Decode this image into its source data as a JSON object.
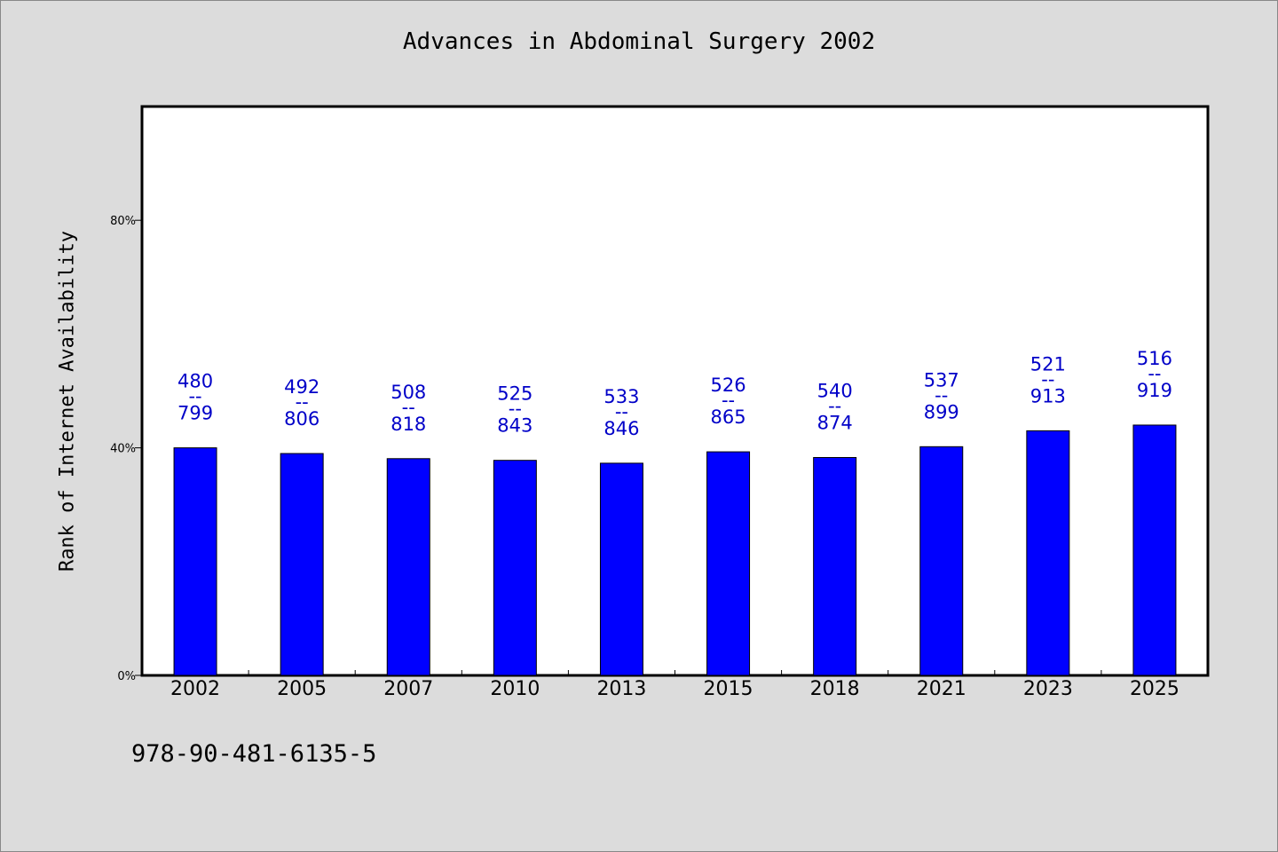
{
  "chart_data": {
    "type": "bar",
    "title": "Advances in Abdominal Surgery 2002",
    "ylabel": "Rank of Internet Availability",
    "xlabel": "",
    "categories": [
      "2002",
      "2005",
      "2007",
      "2010",
      "2013",
      "2015",
      "2018",
      "2021",
      "2023",
      "2025"
    ],
    "values": [
      40.0,
      39.0,
      38.1,
      37.8,
      37.3,
      39.3,
      38.3,
      40.2,
      43.0,
      44.0
    ],
    "labels_top": [
      "480",
      "492",
      "508",
      "525",
      "533",
      "526",
      "540",
      "537",
      "521",
      "516"
    ],
    "labels_bottom": [
      "799",
      "806",
      "818",
      "843",
      "846",
      "865",
      "874",
      "899",
      "913",
      "919"
    ],
    "label_separator": "--",
    "ylim": [
      0,
      100
    ],
    "yticks": [
      0,
      40,
      80
    ],
    "ytick_labels": [
      "0%",
      "40%",
      "80%"
    ],
    "grid": false,
    "bar_color": "#0000ff",
    "label_color": "#0000c8"
  },
  "footer": {
    "isbn": "978-90-481-6135-5"
  }
}
